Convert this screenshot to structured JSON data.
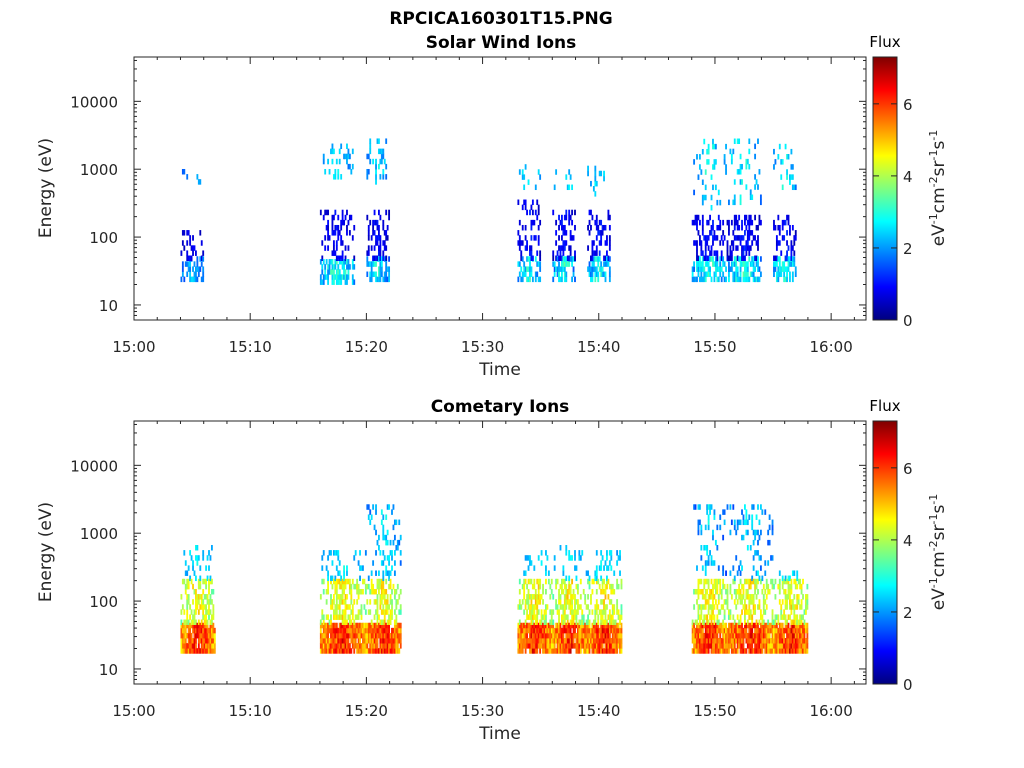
{
  "figure_title": "RPCICA160301T15.PNG",
  "colors": {
    "axes": "#262626",
    "background": "#ffffff",
    "colormap": [
      "#00007f",
      "#0000ff",
      "#007fff",
      "#00ffff",
      "#7fff7f",
      "#ffff00",
      "#ff7f00",
      "#ff0000",
      "#7f0000"
    ]
  },
  "colorbar": {
    "title": "Flux",
    "label_unit": "eV",
    "label_parts": [
      {
        "text": "eV",
        "sup": false
      },
      {
        "text": "-1",
        "sup": true
      },
      {
        "text": "cm",
        "sup": false
      },
      {
        "text": "-2",
        "sup": true
      },
      {
        "text": "sr",
        "sup": false
      },
      {
        "text": "-1",
        "sup": true
      },
      {
        "text": "s",
        "sup": false
      },
      {
        "text": "-1",
        "sup": true
      }
    ],
    "range": [
      0,
      7.3
    ],
    "ticks": [
      {
        "value": 0,
        "label": "0"
      },
      {
        "value": 2,
        "label": "2"
      },
      {
        "value": 4,
        "label": "4"
      },
      {
        "value": 6,
        "label": "6"
      }
    ],
    "colormap": "jet"
  },
  "chart_data": [
    {
      "type": "heatmap",
      "title": "Solar Wind Ions",
      "xlabel": "Time",
      "ylabel": "Energy (eV)",
      "xlim": [
        "15:00",
        "16:03"
      ],
      "ylim": [
        6,
        45000
      ],
      "yscale": "log",
      "grid": false,
      "xticks": [
        "15:00",
        "15:10",
        "15:20",
        "15:30",
        "15:40",
        "15:50",
        "16:00"
      ],
      "yticks": [
        {
          "value": 10,
          "label": "10"
        },
        {
          "value": 100,
          "label": "100"
        },
        {
          "value": 1000,
          "label": "1000"
        },
        {
          "value": 10000,
          "label": "10000"
        }
      ],
      "flux_range": [
        0,
        7.3
      ],
      "bursts": [
        {
          "start": "15:04",
          "end": "15:05",
          "low": [
            [
              22,
              45,
              1.3,
              2.6
            ]
          ],
          "mid": [
            [
              45,
              110,
              0.3,
              1.0
            ]
          ],
          "high": [
            [
              600,
              900,
              1.4,
              2.4
            ]
          ]
        },
        {
          "start": "15:16",
          "end": "15:18",
          "low": [
            [
              20,
              45,
              1.5,
              3.6
            ]
          ],
          "mid": [
            [
              45,
              240,
              0.3,
              1.2
            ]
          ],
          "high": [
            [
              600,
              2200,
              1.5,
              3.0
            ]
          ]
        },
        {
          "start": "15:20",
          "end": "15:21",
          "low": [
            [
              22,
              45,
              1.3,
              3.4
            ]
          ],
          "mid": [
            [
              45,
              220,
              0.3,
              1.2
            ]
          ],
          "high": [
            [
              600,
              2500,
              1.5,
              3.0
            ]
          ]
        },
        {
          "start": "15:33",
          "end": "15:34",
          "low": [
            [
              22,
              45,
              1.4,
              3.5
            ]
          ],
          "mid": [
            [
              45,
              320,
              0.3,
              1.3
            ]
          ],
          "high": [
            [
              500,
              1000,
              1.8,
              3.0
            ]
          ]
        },
        {
          "start": "15:36",
          "end": "15:37",
          "low": [
            [
              22,
              45,
              1.4,
              3.6
            ]
          ],
          "mid": [
            [
              45,
              240,
              0.3,
              1.3
            ]
          ],
          "high": [
            [
              500,
              1000,
              1.8,
              3.0
            ]
          ]
        },
        {
          "start": "15:39",
          "end": "15:40",
          "low": [
            [
              22,
              45,
              1.4,
              3.5
            ]
          ],
          "mid": [
            [
              45,
              220,
              0.3,
              1.3
            ]
          ],
          "high": [
            [
              400,
              1000,
              1.6,
              3.0
            ]
          ]
        },
        {
          "start": "15:48",
          "end": "15:50",
          "low": [
            [
              22,
              45,
              1.5,
              3.6
            ]
          ],
          "mid": [
            [
              45,
              200,
              0.3,
              1.3
            ]
          ],
          "high": [
            [
              250,
              2600,
              1.5,
              3.3
            ]
          ]
        },
        {
          "start": "15:51",
          "end": "15:53",
          "low": [
            [
              22,
              45,
              1.5,
              3.6
            ]
          ],
          "mid": [
            [
              45,
              200,
              0.3,
              1.3
            ]
          ],
          "high": [
            [
              300,
              2600,
              1.5,
              3.3
            ]
          ]
        },
        {
          "start": "15:55",
          "end": "15:56",
          "low": [
            [
              22,
              45,
              1.5,
              3.6
            ]
          ],
          "mid": [
            [
              45,
              200,
              0.3,
              1.3
            ]
          ],
          "high": [
            [
              500,
              2200,
              1.6,
              3.2
            ]
          ]
        }
      ]
    },
    {
      "type": "heatmap",
      "title": "Cometary Ions",
      "xlabel": "Time",
      "ylabel": "Energy (eV)",
      "xlim": [
        "15:00",
        "16:03"
      ],
      "ylim": [
        6,
        45000
      ],
      "yscale": "log",
      "grid": false,
      "xticks": [
        "15:00",
        "15:10",
        "15:20",
        "15:30",
        "15:40",
        "15:50",
        "16:00"
      ],
      "yticks": [
        {
          "value": 10,
          "label": "10"
        },
        {
          "value": 100,
          "label": "100"
        },
        {
          "value": 1000,
          "label": "1000"
        },
        {
          "value": 10000,
          "label": "10000"
        }
      ],
      "flux_range": [
        0,
        7.3
      ],
      "bursts": [
        {
          "start": "15:04",
          "end": "15:06",
          "low": [
            [
              17,
              45,
              4.5,
              6.9
            ]
          ],
          "mid": [
            [
              45,
              200,
              3.2,
              5.2
            ]
          ],
          "high": [
            [
              200,
              650,
              1.8,
              3.0
            ]
          ]
        },
        {
          "start": "15:16",
          "end": "15:19",
          "low": [
            [
              17,
              45,
              4.5,
              6.9
            ]
          ],
          "mid": [
            [
              45,
              200,
              3.2,
              5.2
            ]
          ],
          "high": [
            [
              200,
              560,
              1.8,
              3.0
            ]
          ]
        },
        {
          "start": "15:20",
          "end": "15:22",
          "low": [
            [
              17,
              45,
              4.5,
              6.9
            ]
          ],
          "mid": [
            [
              45,
              200,
              3.2,
              5.2
            ]
          ],
          "high": [
            [
              200,
              2600,
              1.5,
              3.0
            ]
          ]
        },
        {
          "start": "15:33",
          "end": "15:35",
          "low": [
            [
              17,
              45,
              4.5,
              6.9
            ]
          ],
          "mid": [
            [
              45,
              200,
              3.2,
              5.2
            ]
          ],
          "high": [
            [
              200,
              550,
              1.8,
              3.0
            ]
          ]
        },
        {
          "start": "15:36",
          "end": "15:38",
          "low": [
            [
              17,
              45,
              4.5,
              6.9
            ]
          ],
          "mid": [
            [
              45,
              200,
              3.2,
              5.2
            ]
          ],
          "high": [
            [
              200,
              580,
              1.8,
              3.0
            ]
          ]
        },
        {
          "start": "15:39",
          "end": "15:41",
          "low": [
            [
              17,
              45,
              4.5,
              6.9
            ]
          ],
          "mid": [
            [
              45,
              200,
              3.2,
              5.2
            ]
          ],
          "high": [
            [
              200,
              500,
              1.8,
              3.0
            ]
          ]
        },
        {
          "start": "15:48",
          "end": "15:50",
          "low": [
            [
              17,
              45,
              4.5,
              6.9
            ]
          ],
          "mid": [
            [
              45,
              200,
              3.2,
              5.2
            ]
          ],
          "high": [
            [
              200,
              2600,
              1.2,
              3.0
            ]
          ]
        },
        {
          "start": "15:51",
          "end": "15:54",
          "low": [
            [
              17,
              45,
              4.5,
              6.9
            ]
          ],
          "mid": [
            [
              45,
              200,
              3.2,
              5.2
            ]
          ],
          "high": [
            [
              200,
              2600,
              1.2,
              3.0
            ]
          ]
        },
        {
          "start": "15:55",
          "end": "15:57",
          "low": [
            [
              17,
              45,
              4.5,
              6.9
            ]
          ],
          "mid": [
            [
              45,
              200,
              3.2,
              5.2
            ]
          ],
          "high": [
            [
              200,
              240,
              1.8,
              3.0
            ]
          ]
        }
      ]
    }
  ]
}
